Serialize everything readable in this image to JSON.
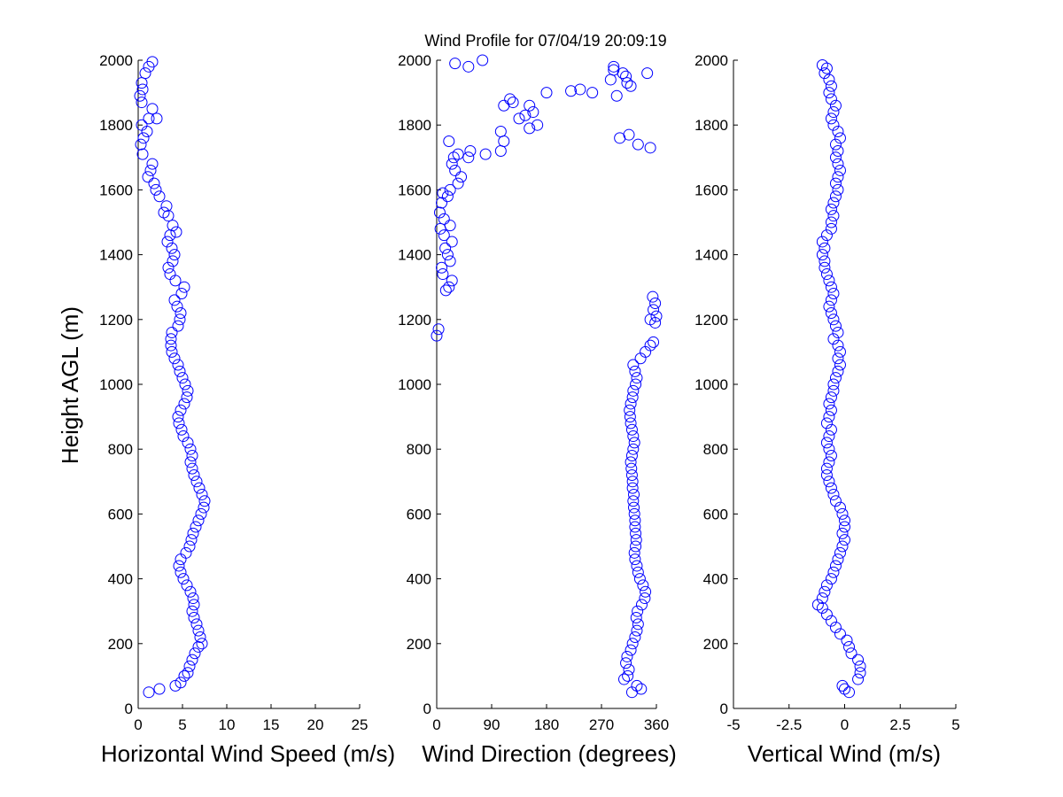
{
  "figure": {
    "title": "Wind Profile for  07/04/19 20:09:19",
    "ylabel": "Height AGL (m)"
  },
  "style": {
    "marker_color": "#0000ff",
    "axis_color": "#000000",
    "background": "#ffffff"
  },
  "chart_data": [
    {
      "type": "scatter",
      "name": "horizontal-speed",
      "xlabel": "Horizontal Wind Speed (m/s)",
      "ylabel": "Height AGL (m)",
      "xlim": [
        0,
        25
      ],
      "ylim": [
        0,
        2000
      ],
      "xticks": [
        0,
        5,
        10,
        15,
        20,
        25
      ],
      "xtick_labels": [
        "0",
        "5",
        "10",
        "15",
        "20",
        "25"
      ],
      "yticks": [
        0,
        200,
        400,
        600,
        800,
        1000,
        1200,
        1400,
        1600,
        1800,
        2000
      ],
      "ytick_labels": [
        "0",
        "200",
        "400",
        "600",
        "800",
        "1000",
        "1200",
        "1400",
        "1600",
        "1800",
        "2000"
      ],
      "grid": false,
      "points": [
        [
          1.2,
          50
        ],
        [
          2.4,
          60
        ],
        [
          4.2,
          70
        ],
        [
          4.8,
          80
        ],
        [
          5.2,
          100
        ],
        [
          5.6,
          110
        ],
        [
          5.8,
          130
        ],
        [
          6.1,
          150
        ],
        [
          6.4,
          170
        ],
        [
          6.8,
          190
        ],
        [
          7.2,
          200
        ],
        [
          7.0,
          220
        ],
        [
          6.8,
          240
        ],
        [
          6.6,
          260
        ],
        [
          6.3,
          280
        ],
        [
          6.1,
          300
        ],
        [
          6.3,
          320
        ],
        [
          6.2,
          340
        ],
        [
          5.9,
          360
        ],
        [
          5.5,
          380
        ],
        [
          5.1,
          400
        ],
        [
          4.8,
          420
        ],
        [
          4.6,
          440
        ],
        [
          4.8,
          460
        ],
        [
          5.4,
          480
        ],
        [
          5.8,
          500
        ],
        [
          6.0,
          520
        ],
        [
          6.2,
          540
        ],
        [
          6.5,
          560
        ],
        [
          6.8,
          580
        ],
        [
          7.1,
          600
        ],
        [
          7.4,
          620
        ],
        [
          7.5,
          640
        ],
        [
          7.2,
          660
        ],
        [
          6.9,
          680
        ],
        [
          6.6,
          700
        ],
        [
          6.3,
          720
        ],
        [
          6.1,
          740
        ],
        [
          5.9,
          760
        ],
        [
          6.1,
          780
        ],
        [
          5.9,
          800
        ],
        [
          5.6,
          820
        ],
        [
          5.1,
          840
        ],
        [
          4.9,
          860
        ],
        [
          4.6,
          880
        ],
        [
          4.5,
          900
        ],
        [
          4.8,
          920
        ],
        [
          5.2,
          940
        ],
        [
          5.5,
          960
        ],
        [
          5.6,
          980
        ],
        [
          5.3,
          1000
        ],
        [
          5.0,
          1020
        ],
        [
          4.7,
          1040
        ],
        [
          4.5,
          1060
        ],
        [
          4.1,
          1080
        ],
        [
          3.8,
          1100
        ],
        [
          3.7,
          1120
        ],
        [
          3.7,
          1140
        ],
        [
          3.8,
          1160
        ],
        [
          4.5,
          1180
        ],
        [
          4.7,
          1200
        ],
        [
          4.8,
          1220
        ],
        [
          4.4,
          1240
        ],
        [
          4.1,
          1260
        ],
        [
          4.9,
          1280
        ],
        [
          5.2,
          1300
        ],
        [
          4.2,
          1320
        ],
        [
          3.6,
          1340
        ],
        [
          3.4,
          1360
        ],
        [
          3.9,
          1380
        ],
        [
          4.1,
          1400
        ],
        [
          3.8,
          1420
        ],
        [
          3.3,
          1440
        ],
        [
          3.6,
          1460
        ],
        [
          4.3,
          1470
        ],
        [
          3.9,
          1490
        ],
        [
          3.4,
          1520
        ],
        [
          2.9,
          1530
        ],
        [
          3.2,
          1550
        ],
        [
          2.4,
          1580
        ],
        [
          2.0,
          1600
        ],
        [
          1.8,
          1620
        ],
        [
          1.1,
          1640
        ],
        [
          1.4,
          1660
        ],
        [
          1.6,
          1680
        ],
        [
          0.5,
          1710
        ],
        [
          0.3,
          1740
        ],
        [
          0.6,
          1760
        ],
        [
          1.0,
          1780
        ],
        [
          0.4,
          1800
        ],
        [
          1.2,
          1820
        ],
        [
          2.1,
          1820
        ],
        [
          1.6,
          1850
        ],
        [
          0.4,
          1870
        ],
        [
          0.2,
          1890
        ],
        [
          0.5,
          1910
        ],
        [
          0.4,
          1930
        ],
        [
          0.8,
          1960
        ],
        [
          1.2,
          1980
        ],
        [
          1.6,
          1995
        ]
      ]
    },
    {
      "type": "scatter",
      "name": "wind-direction",
      "xlabel": "Wind Direction (degrees)",
      "xlim": [
        0,
        360
      ],
      "ylim": [
        0,
        2000
      ],
      "xticks": [
        0,
        90,
        180,
        270,
        360
      ],
      "xtick_labels": [
        "0",
        "90",
        "180",
        "270",
        "360"
      ],
      "yticks": [
        0,
        200,
        400,
        600,
        800,
        1000,
        1200,
        1400,
        1600,
        1800,
        2000
      ],
      "ytick_labels": [
        "0",
        "200",
        "400",
        "600",
        "800",
        "1000",
        "1200",
        "1400",
        "1600",
        "1800",
        "2000"
      ],
      "grid": false,
      "points": [
        [
          320,
          50
        ],
        [
          335,
          60
        ],
        [
          328,
          70
        ],
        [
          307,
          90
        ],
        [
          313,
          100
        ],
        [
          315,
          120
        ],
        [
          310,
          140
        ],
        [
          312,
          160
        ],
        [
          318,
          180
        ],
        [
          321,
          200
        ],
        [
          325,
          220
        ],
        [
          328,
          240
        ],
        [
          330,
          260
        ],
        [
          327,
          280
        ],
        [
          329,
          300
        ],
        [
          336,
          320
        ],
        [
          341,
          340
        ],
        [
          342,
          360
        ],
        [
          338,
          380
        ],
        [
          333,
          400
        ],
        [
          330,
          420
        ],
        [
          328,
          440
        ],
        [
          325,
          460
        ],
        [
          324,
          480
        ],
        [
          326,
          500
        ],
        [
          327,
          520
        ],
        [
          326,
          540
        ],
        [
          325,
          560
        ],
        [
          325,
          580
        ],
        [
          324,
          600
        ],
        [
          323,
          620
        ],
        [
          322,
          640
        ],
        [
          323,
          660
        ],
        [
          321,
          680
        ],
        [
          321,
          700
        ],
        [
          320,
          720
        ],
        [
          319,
          740
        ],
        [
          318,
          760
        ],
        [
          320,
          780
        ],
        [
          322,
          800
        ],
        [
          324,
          820
        ],
        [
          322,
          840
        ],
        [
          320,
          860
        ],
        [
          318,
          880
        ],
        [
          317,
          900
        ],
        [
          316,
          920
        ],
        [
          318,
          940
        ],
        [
          321,
          960
        ],
        [
          322,
          980
        ],
        [
          326,
          1000
        ],
        [
          328,
          1020
        ],
        [
          325,
          1040
        ],
        [
          322,
          1060
        ],
        [
          334,
          1080
        ],
        [
          342,
          1100
        ],
        [
          350,
          1120
        ],
        [
          355,
          1130
        ],
        [
          0,
          1150
        ],
        [
          3,
          1170
        ],
        [
          358,
          1190
        ],
        [
          350,
          1200
        ],
        [
          360,
          1210
        ],
        [
          355,
          1230
        ],
        [
          358,
          1250
        ],
        [
          354,
          1270
        ],
        [
          15,
          1290
        ],
        [
          20,
          1300
        ],
        [
          25,
          1320
        ],
        [
          10,
          1340
        ],
        [
          8,
          1360
        ],
        [
          22,
          1380
        ],
        [
          18,
          1400
        ],
        [
          14,
          1420
        ],
        [
          25,
          1440
        ],
        [
          12,
          1460
        ],
        [
          6,
          1480
        ],
        [
          22,
          1490
        ],
        [
          12,
          1510
        ],
        [
          5,
          1530
        ],
        [
          8,
          1560
        ],
        [
          18,
          1580
        ],
        [
          10,
          1590
        ],
        [
          22,
          1600
        ],
        [
          35,
          1620
        ],
        [
          40,
          1640
        ],
        [
          30,
          1660
        ],
        [
          25,
          1680
        ],
        [
          28,
          1700
        ],
        [
          35,
          1710
        ],
        [
          55,
          1720
        ],
        [
          80,
          1710
        ],
        [
          52,
          1700
        ],
        [
          105,
          1720
        ],
        [
          110,
          1750
        ],
        [
          20,
          1750
        ],
        [
          105,
          1780
        ],
        [
          152,
          1790
        ],
        [
          165,
          1800
        ],
        [
          135,
          1820
        ],
        [
          145,
          1830
        ],
        [
          158,
          1840
        ],
        [
          152,
          1860
        ],
        [
          110,
          1860
        ],
        [
          125,
          1870
        ],
        [
          120,
          1880
        ],
        [
          180,
          1900
        ],
        [
          220,
          1905
        ],
        [
          235,
          1910
        ],
        [
          255,
          1900
        ],
        [
          285,
          1940
        ],
        [
          290,
          1980
        ],
        [
          305,
          1960
        ],
        [
          310,
          1950
        ],
        [
          312,
          1930
        ],
        [
          318,
          1920
        ],
        [
          295,
          1890
        ],
        [
          300,
          1760
        ],
        [
          315,
          1770
        ],
        [
          330,
          1740
        ],
        [
          350,
          1730
        ],
        [
          30,
          1990
        ],
        [
          52,
          1980
        ],
        [
          75,
          2000
        ],
        [
          345,
          1960
        ],
        [
          290,
          1970
        ]
      ]
    },
    {
      "type": "scatter",
      "name": "vertical-wind",
      "xlabel": "Vertical Wind (m/s)",
      "xlim": [
        -5,
        5
      ],
      "ylim": [
        0,
        2000
      ],
      "xticks": [
        -5,
        -2.5,
        0,
        2.5,
        5
      ],
      "xtick_labels": [
        "-5",
        "-2.5",
        "0",
        "2.5",
        "5"
      ],
      "yticks": [
        0,
        200,
        400,
        600,
        800,
        1000,
        1200,
        1400,
        1600,
        1800,
        2000
      ],
      "ytick_labels": [
        "0",
        "200",
        "400",
        "600",
        "800",
        "1000",
        "1200",
        "1400",
        "1600",
        "1800",
        "2000"
      ],
      "grid": false,
      "points": [
        [
          0.2,
          50
        ],
        [
          0.0,
          60
        ],
        [
          -0.1,
          70
        ],
        [
          0.6,
          90
        ],
        [
          0.7,
          110
        ],
        [
          0.7,
          130
        ],
        [
          0.6,
          150
        ],
        [
          0.3,
          170
        ],
        [
          0.2,
          190
        ],
        [
          0.1,
          210
        ],
        [
          -0.2,
          230
        ],
        [
          -0.4,
          250
        ],
        [
          -0.6,
          270
        ],
        [
          -0.8,
          290
        ],
        [
          -1.0,
          310
        ],
        [
          -1.2,
          320
        ],
        [
          -1.0,
          340
        ],
        [
          -0.9,
          360
        ],
        [
          -0.8,
          380
        ],
        [
          -0.6,
          400
        ],
        [
          -0.5,
          420
        ],
        [
          -0.4,
          440
        ],
        [
          -0.3,
          460
        ],
        [
          -0.2,
          480
        ],
        [
          -0.1,
          500
        ],
        [
          0.0,
          520
        ],
        [
          -0.1,
          540
        ],
        [
          0.0,
          560
        ],
        [
          0.0,
          580
        ],
        [
          -0.1,
          600
        ],
        [
          -0.2,
          620
        ],
        [
          -0.4,
          640
        ],
        [
          -0.5,
          660
        ],
        [
          -0.6,
          680
        ],
        [
          -0.7,
          700
        ],
        [
          -0.8,
          720
        ],
        [
          -0.8,
          740
        ],
        [
          -0.7,
          760
        ],
        [
          -0.6,
          780
        ],
        [
          -0.7,
          800
        ],
        [
          -0.8,
          820
        ],
        [
          -0.7,
          840
        ],
        [
          -0.6,
          860
        ],
        [
          -0.8,
          880
        ],
        [
          -0.7,
          900
        ],
        [
          -0.6,
          920
        ],
        [
          -0.7,
          940
        ],
        [
          -0.6,
          960
        ],
        [
          -0.5,
          980
        ],
        [
          -0.5,
          1000
        ],
        [
          -0.4,
          1020
        ],
        [
          -0.3,
          1040
        ],
        [
          -0.2,
          1060
        ],
        [
          -0.3,
          1080
        ],
        [
          -0.2,
          1100
        ],
        [
          -0.3,
          1120
        ],
        [
          -0.5,
          1140
        ],
        [
          -0.3,
          1160
        ],
        [
          -0.4,
          1180
        ],
        [
          -0.5,
          1200
        ],
        [
          -0.6,
          1220
        ],
        [
          -0.7,
          1240
        ],
        [
          -0.6,
          1260
        ],
        [
          -0.5,
          1280
        ],
        [
          -0.6,
          1300
        ],
        [
          -0.7,
          1320
        ],
        [
          -0.8,
          1340
        ],
        [
          -0.9,
          1360
        ],
        [
          -0.9,
          1380
        ],
        [
          -1.0,
          1400
        ],
        [
          -0.9,
          1420
        ],
        [
          -1.0,
          1440
        ],
        [
          -0.8,
          1460
        ],
        [
          -0.6,
          1480
        ],
        [
          -0.6,
          1500
        ],
        [
          -0.5,
          1520
        ],
        [
          -0.6,
          1540
        ],
        [
          -0.5,
          1560
        ],
        [
          -0.4,
          1580
        ],
        [
          -0.3,
          1600
        ],
        [
          -0.4,
          1620
        ],
        [
          -0.3,
          1640
        ],
        [
          -0.2,
          1660
        ],
        [
          -0.3,
          1680
        ],
        [
          -0.4,
          1700
        ],
        [
          -0.3,
          1720
        ],
        [
          -0.4,
          1740
        ],
        [
          -0.2,
          1760
        ],
        [
          -0.3,
          1780
        ],
        [
          -0.5,
          1800
        ],
        [
          -0.6,
          1820
        ],
        [
          -0.5,
          1840
        ],
        [
          -0.4,
          1860
        ],
        [
          -0.6,
          1880
        ],
        [
          -0.7,
          1900
        ],
        [
          -0.6,
          1920
        ],
        [
          -0.7,
          1940
        ],
        [
          -0.9,
          1960
        ],
        [
          -0.8,
          1975
        ],
        [
          -1.0,
          1985
        ]
      ]
    }
  ]
}
